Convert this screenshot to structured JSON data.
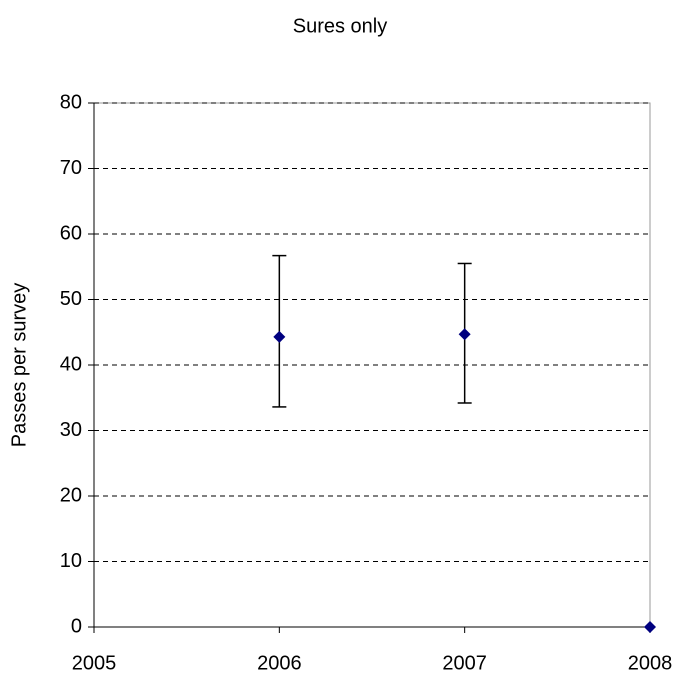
{
  "chart_data": {
    "type": "scatter",
    "title": "Sures only",
    "y_label": "Passes per survey",
    "x": [
      2006,
      2007,
      2008
    ],
    "values": [
      44.3,
      44.7,
      0
    ],
    "error_minus": [
      10.7,
      10.5,
      null
    ],
    "error_plus": [
      12.4,
      10.8,
      null
    ],
    "color": "#000080",
    "xlim": [
      2005,
      2008
    ],
    "xticks": [
      2005,
      2006,
      2007,
      2008
    ],
    "ylim": [
      0,
      80
    ],
    "yticks": [
      0,
      10,
      20,
      30,
      40,
      50,
      60,
      70,
      80
    ],
    "grid": true
  }
}
